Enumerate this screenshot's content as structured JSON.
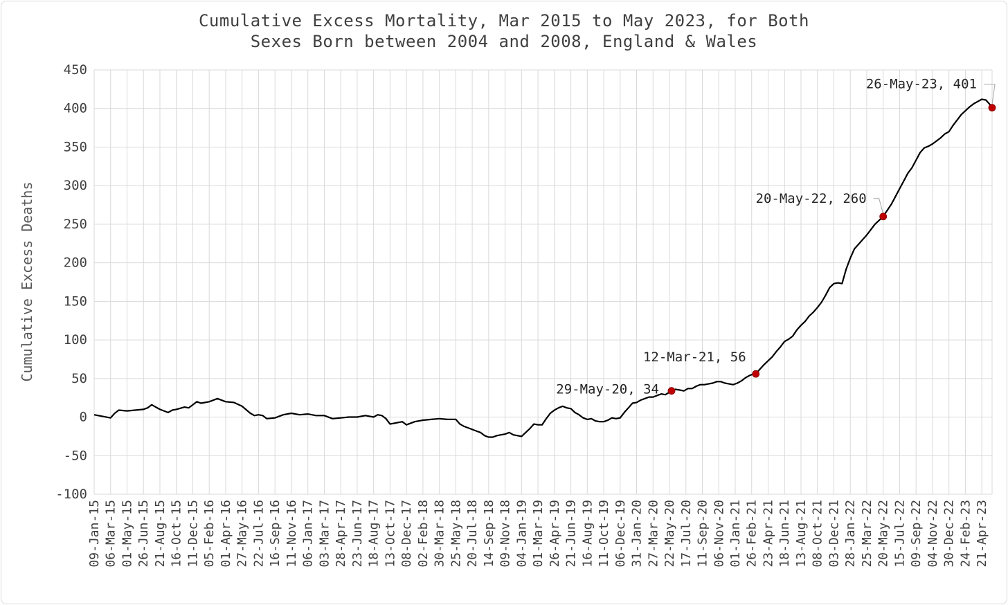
{
  "chart_data": {
    "type": "line",
    "title_line1": "Cumulative Excess Mortality, Mar 2015 to May 2023, for Both",
    "title_line2": "Sexes Born between 2004 and 2008, England & Wales",
    "xlabel": "",
    "ylabel": "Cumulative Excess Deaths",
    "ylim": [
      -100,
      450
    ],
    "yticks": [
      -100,
      -50,
      0,
      50,
      100,
      150,
      200,
      250,
      300,
      350,
      400,
      450
    ],
    "grid": true,
    "x_start": "09-Jan-15",
    "x_end": "26-May-23",
    "x_tick_labels": [
      "09-Jan-15",
      "06-Mar-15",
      "01-May-15",
      "26-Jun-15",
      "21-Aug-15",
      "16-Oct-15",
      "11-Dec-15",
      "05-Feb-16",
      "01-Apr-16",
      "27-May-16",
      "22-Jul-16",
      "16-Sep-16",
      "11-Nov-16",
      "06-Jan-17",
      "03-Mar-17",
      "28-Apr-17",
      "23-Jun-17",
      "18-Aug-17",
      "13-Oct-17",
      "08-Dec-17",
      "02-Feb-18",
      "30-Mar-18",
      "25-May-18",
      "20-Jul-18",
      "14-Sep-18",
      "09-Nov-18",
      "04-Jan-19",
      "01-Mar-19",
      "26-Apr-19",
      "21-Jun-19",
      "16-Aug-19",
      "11-Oct-19",
      "06-Dec-19",
      "31-Jan-20",
      "27-Mar-20",
      "22-May-20",
      "17-Jul-20",
      "11-Sep-20",
      "06-Nov-20",
      "01-Jan-21",
      "26-Feb-21",
      "23-Apr-21",
      "18-Jun-21",
      "13-Aug-21",
      "08-Oct-21",
      "03-Dec-21",
      "28-Jan-22",
      "25-Mar-22",
      "20-May-22",
      "15-Jul-22",
      "09-Sep-22",
      "04-Nov-22",
      "30-Dec-22",
      "24-Feb-23",
      "21-Apr-23"
    ],
    "series": [
      {
        "color": "#000000",
        "points": [
          [
            "09-Jan-15",
            3
          ],
          [
            "06-Feb-15",
            1
          ],
          [
            "06-Mar-15",
            -1
          ],
          [
            "20-Mar-15",
            5
          ],
          [
            "03-Apr-15",
            9
          ],
          [
            "01-May-15",
            8
          ],
          [
            "29-May-15",
            9
          ],
          [
            "26-Jun-15",
            10
          ],
          [
            "10-Jul-15",
            12
          ],
          [
            "24-Jul-15",
            16
          ],
          [
            "07-Aug-15",
            13
          ],
          [
            "21-Aug-15",
            10
          ],
          [
            "04-Sep-15",
            8
          ],
          [
            "18-Sep-15",
            6
          ],
          [
            "02-Oct-15",
            9
          ],
          [
            "16-Oct-15",
            10
          ],
          [
            "13-Nov-15",
            13
          ],
          [
            "27-Nov-15",
            12
          ],
          [
            "11-Dec-15",
            16
          ],
          [
            "25-Dec-15",
            20
          ],
          [
            "08-Jan-16",
            18
          ],
          [
            "05-Feb-16",
            20
          ],
          [
            "04-Mar-16",
            24
          ],
          [
            "01-Apr-16",
            20
          ],
          [
            "29-Apr-16",
            19
          ],
          [
            "27-May-16",
            14
          ],
          [
            "24-Jun-16",
            5
          ],
          [
            "08-Jul-16",
            2
          ],
          [
            "22-Jul-16",
            3
          ],
          [
            "05-Aug-16",
            2
          ],
          [
            "19-Aug-16",
            -2
          ],
          [
            "16-Sep-16",
            -1
          ],
          [
            "14-Oct-16",
            3
          ],
          [
            "11-Nov-16",
            5
          ],
          [
            "09-Dec-16",
            3
          ],
          [
            "06-Jan-17",
            4
          ],
          [
            "03-Feb-17",
            2
          ],
          [
            "03-Mar-17",
            2
          ],
          [
            "31-Mar-17",
            -2
          ],
          [
            "28-Apr-17",
            -1
          ],
          [
            "26-May-17",
            0
          ],
          [
            "23-Jun-17",
            0
          ],
          [
            "21-Jul-17",
            2
          ],
          [
            "18-Aug-17",
            0
          ],
          [
            "01-Sep-17",
            3
          ],
          [
            "15-Sep-17",
            2
          ],
          [
            "29-Sep-17",
            -2
          ],
          [
            "13-Oct-17",
            -9
          ],
          [
            "27-Oct-17",
            -8
          ],
          [
            "10-Nov-17",
            -7
          ],
          [
            "24-Nov-17",
            -6
          ],
          [
            "08-Dec-17",
            -10
          ],
          [
            "05-Jan-18",
            -6
          ],
          [
            "02-Feb-18",
            -4
          ],
          [
            "02-Mar-18",
            -3
          ],
          [
            "30-Mar-18",
            -2
          ],
          [
            "27-Apr-18",
            -3
          ],
          [
            "25-May-18",
            -3
          ],
          [
            "08-Jun-18",
            -9
          ],
          [
            "22-Jun-18",
            -12
          ],
          [
            "20-Jul-18",
            -16
          ],
          [
            "03-Aug-18",
            -18
          ],
          [
            "17-Aug-18",
            -20
          ],
          [
            "31-Aug-18",
            -24
          ],
          [
            "14-Sep-18",
            -26
          ],
          [
            "28-Sep-18",
            -26
          ],
          [
            "12-Oct-18",
            -24
          ],
          [
            "09-Nov-18",
            -22
          ],
          [
            "23-Nov-18",
            -20
          ],
          [
            "07-Dec-18",
            -23
          ],
          [
            "04-Jan-19",
            -25
          ],
          [
            "18-Jan-19",
            -20
          ],
          [
            "01-Feb-19",
            -15
          ],
          [
            "15-Feb-19",
            -9
          ],
          [
            "01-Mar-19",
            -10
          ],
          [
            "15-Mar-19",
            -10
          ],
          [
            "29-Mar-19",
            -2
          ],
          [
            "12-Apr-19",
            5
          ],
          [
            "26-Apr-19",
            9
          ],
          [
            "10-May-19",
            12
          ],
          [
            "24-May-19",
            14
          ],
          [
            "07-Jun-19",
            12
          ],
          [
            "21-Jun-19",
            11
          ],
          [
            "05-Jul-19",
            6
          ],
          [
            "19-Jul-19",
            3
          ],
          [
            "02-Aug-19",
            -1
          ],
          [
            "16-Aug-19",
            -3
          ],
          [
            "30-Aug-19",
            -2
          ],
          [
            "13-Sep-19",
            -5
          ],
          [
            "27-Sep-19",
            -6
          ],
          [
            "11-Oct-19",
            -6
          ],
          [
            "25-Oct-19",
            -4
          ],
          [
            "08-Nov-19",
            -1
          ],
          [
            "22-Nov-19",
            -2
          ],
          [
            "06-Dec-19",
            -1
          ],
          [
            "20-Dec-19",
            6
          ],
          [
            "03-Jan-20",
            12
          ],
          [
            "17-Jan-20",
            18
          ],
          [
            "31-Jan-20",
            19
          ],
          [
            "14-Feb-20",
            22
          ],
          [
            "28-Feb-20",
            24
          ],
          [
            "13-Mar-20",
            26
          ],
          [
            "27-Mar-20",
            26
          ],
          [
            "10-Apr-20",
            28
          ],
          [
            "24-Apr-20",
            30
          ],
          [
            "08-May-20",
            29
          ],
          [
            "29-May-20",
            34
          ],
          [
            "12-Jun-20",
            36
          ],
          [
            "26-Jun-20",
            35
          ],
          [
            "10-Jul-20",
            34
          ],
          [
            "24-Jul-20",
            37
          ],
          [
            "07-Aug-20",
            37
          ],
          [
            "21-Aug-20",
            40
          ],
          [
            "04-Sep-20",
            42
          ],
          [
            "18-Sep-20",
            42
          ],
          [
            "02-Oct-20",
            43
          ],
          [
            "16-Oct-20",
            44
          ],
          [
            "30-Oct-20",
            46
          ],
          [
            "13-Nov-20",
            46
          ],
          [
            "27-Nov-20",
            44
          ],
          [
            "11-Dec-20",
            43
          ],
          [
            "25-Dec-20",
            42
          ],
          [
            "08-Jan-21",
            44
          ],
          [
            "22-Jan-21",
            47
          ],
          [
            "05-Feb-21",
            51
          ],
          [
            "19-Feb-21",
            54
          ],
          [
            "05-Mar-21",
            56
          ],
          [
            "12-Mar-21",
            56
          ],
          [
            "26-Mar-21",
            62
          ],
          [
            "09-Apr-21",
            68
          ],
          [
            "23-Apr-21",
            73
          ],
          [
            "07-May-21",
            78
          ],
          [
            "21-May-21",
            85
          ],
          [
            "04-Jun-21",
            91
          ],
          [
            "18-Jun-21",
            98
          ],
          [
            "02-Jul-21",
            101
          ],
          [
            "16-Jul-21",
            105
          ],
          [
            "30-Jul-21",
            113
          ],
          [
            "13-Aug-21",
            119
          ],
          [
            "27-Aug-21",
            124
          ],
          [
            "10-Sep-21",
            131
          ],
          [
            "24-Sep-21",
            136
          ],
          [
            "08-Oct-21",
            142
          ],
          [
            "22-Oct-21",
            149
          ],
          [
            "05-Nov-21",
            158
          ],
          [
            "19-Nov-21",
            168
          ],
          [
            "03-Dec-21",
            173
          ],
          [
            "17-Dec-21",
            174
          ],
          [
            "31-Dec-21",
            173
          ],
          [
            "14-Jan-22",
            192
          ],
          [
            "28-Jan-22",
            206
          ],
          [
            "11-Feb-22",
            218
          ],
          [
            "25-Feb-22",
            224
          ],
          [
            "11-Mar-22",
            230
          ],
          [
            "25-Mar-22",
            236
          ],
          [
            "08-Apr-22",
            243
          ],
          [
            "22-Apr-22",
            250
          ],
          [
            "06-May-22",
            255
          ],
          [
            "20-May-22",
            260
          ],
          [
            "03-Jun-22",
            268
          ],
          [
            "17-Jun-22",
            276
          ],
          [
            "01-Jul-22",
            286
          ],
          [
            "15-Jul-22",
            296
          ],
          [
            "29-Jul-22",
            306
          ],
          [
            "12-Aug-22",
            316
          ],
          [
            "26-Aug-22",
            323
          ],
          [
            "09-Sep-22",
            333
          ],
          [
            "23-Sep-22",
            343
          ],
          [
            "07-Oct-22",
            349
          ],
          [
            "21-Oct-22",
            351
          ],
          [
            "04-Nov-22",
            354
          ],
          [
            "18-Nov-22",
            358
          ],
          [
            "02-Dec-22",
            362
          ],
          [
            "16-Dec-22",
            367
          ],
          [
            "30-Dec-22",
            370
          ],
          [
            "13-Jan-23",
            378
          ],
          [
            "27-Jan-23",
            385
          ],
          [
            "10-Feb-23",
            392
          ],
          [
            "24-Feb-23",
            397
          ],
          [
            "10-Mar-23",
            402
          ],
          [
            "24-Mar-23",
            406
          ],
          [
            "07-Apr-23",
            409
          ],
          [
            "21-Apr-23",
            412
          ],
          [
            "05-May-23",
            411
          ],
          [
            "19-May-23",
            405
          ],
          [
            "26-May-23",
            401
          ]
        ]
      }
    ],
    "annotations": [
      {
        "date": "29-May-20",
        "value": 34,
        "label": "29-May-20, 34",
        "color": "#c00000"
      },
      {
        "date": "12-Mar-21",
        "value": 56,
        "label": "12-Mar-21, 56",
        "color": "#c00000"
      },
      {
        "date": "20-May-22",
        "value": 260,
        "label": "20-May-22, 260",
        "color": "#c00000"
      },
      {
        "date": "26-May-23",
        "value": 401,
        "label": "26-May-23, 401",
        "color": "#c00000"
      }
    ]
  }
}
